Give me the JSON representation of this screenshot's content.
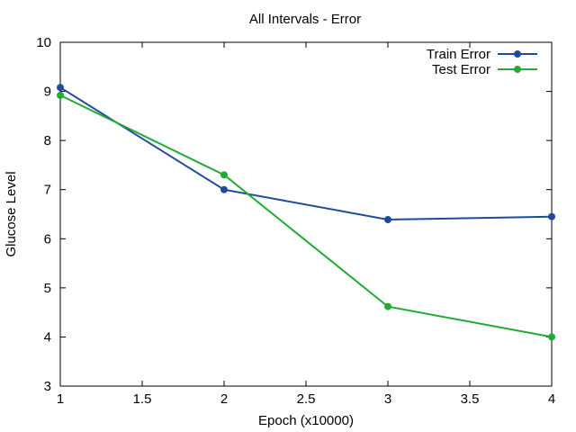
{
  "chart_data": {
    "type": "line",
    "title": "All Intervals - Error",
    "xlabel": "Epoch (x10000)",
    "ylabel": "Glucose Level",
    "xlim": [
      1,
      4
    ],
    "ylim": [
      3,
      10
    ],
    "xticks": [
      "1",
      "1.5",
      "2",
      "2.5",
      "3",
      "3.5",
      "4"
    ],
    "yticks": [
      "3",
      "4",
      "5",
      "6",
      "7",
      "8",
      "9",
      "10"
    ],
    "grid": false,
    "legend_position": "top-right",
    "series": [
      {
        "name": "Train Error",
        "color": "#1f4aa0",
        "marker": "circle",
        "x": [
          1,
          2,
          3,
          4
        ],
        "y": [
          9.08,
          7.0,
          6.39,
          6.45
        ]
      },
      {
        "name": "Test Error",
        "color": "#22aa33",
        "marker": "circle",
        "x": [
          1,
          2,
          3,
          4
        ],
        "y": [
          8.92,
          7.3,
          4.62,
          4.0
        ]
      }
    ]
  }
}
